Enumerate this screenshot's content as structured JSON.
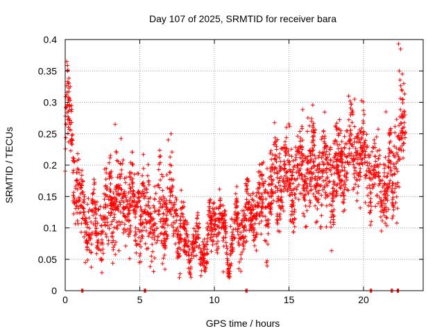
{
  "chart_data": {
    "type": "scatter",
    "title": "Day 107 of 2025, SRMTID for receiver bara",
    "xlabel": "GPS time / hours",
    "ylabel": "SRMTID / TECUs",
    "xlim": [
      0,
      24
    ],
    "ylim": [
      0,
      0.4
    ],
    "x_ticks": [
      0,
      5,
      10,
      15,
      20
    ],
    "x_tick_labels": [
      "0",
      "5",
      "10",
      "15",
      "20"
    ],
    "y_ticks": [
      0,
      0.05,
      0.1,
      0.15,
      0.2,
      0.25,
      0.3,
      0.35,
      0.4
    ],
    "y_tick_labels": [
      "0",
      "0.05",
      "0.1",
      "0.15",
      "0.2",
      "0.25",
      "0.3",
      "0.35",
      "0.4"
    ],
    "grid": true,
    "marker": "+",
    "series_color": "#ff0000",
    "series": [
      {
        "name": "SRMTID",
        "trend_x": [
          0,
          0.15,
          0.3,
          0.6,
          1,
          1.5,
          2,
          2.5,
          3,
          3.5,
          4,
          4.5,
          5,
          5.5,
          6,
          6.5,
          7,
          7.5,
          8,
          8.5,
          9,
          9.5,
          10,
          10.5,
          11,
          11.5,
          12,
          12.5,
          13,
          13.5,
          14,
          14.5,
          15,
          15.5,
          16,
          16.5,
          17,
          17.5,
          18,
          18.5,
          19,
          19.5,
          20,
          20.5,
          21,
          21.5,
          22,
          22.5,
          22.8
        ],
        "trend_y": [
          0.22,
          0.3,
          0.27,
          0.19,
          0.14,
          0.11,
          0.1,
          0.11,
          0.13,
          0.14,
          0.15,
          0.14,
          0.12,
          0.12,
          0.11,
          0.12,
          0.13,
          0.11,
          0.08,
          0.07,
          0.07,
          0.07,
          0.12,
          0.1,
          0.06,
          0.1,
          0.11,
          0.12,
          0.14,
          0.15,
          0.17,
          0.18,
          0.19,
          0.18,
          0.19,
          0.19,
          0.19,
          0.18,
          0.18,
          0.19,
          0.22,
          0.23,
          0.21,
          0.19,
          0.17,
          0.16,
          0.18,
          0.25,
          0.26
        ],
        "spread": [
          0.04,
          0.05,
          0.05,
          0.05,
          0.04,
          0.04,
          0.04,
          0.04,
          0.05,
          0.05,
          0.05,
          0.05,
          0.05,
          0.05,
          0.05,
          0.05,
          0.05,
          0.04,
          0.03,
          0.02,
          0.02,
          0.02,
          0.03,
          0.03,
          0.02,
          0.03,
          0.04,
          0.04,
          0.04,
          0.05,
          0.05,
          0.05,
          0.05,
          0.05,
          0.05,
          0.05,
          0.05,
          0.05,
          0.05,
          0.05,
          0.05,
          0.05,
          0.05,
          0.04,
          0.04,
          0.04,
          0.05,
          0.06,
          0.05
        ],
        "outliers": [
          {
            "x": 0.1,
            "y": 0.365
          },
          {
            "x": 0.15,
            "y": 0.35
          },
          {
            "x": 0.2,
            "y": 0.33
          },
          {
            "x": 3.35,
            "y": 0.265
          },
          {
            "x": 6.9,
            "y": 0.24
          },
          {
            "x": 19.0,
            "y": 0.31
          },
          {
            "x": 19.4,
            "y": 0.305
          },
          {
            "x": 21.5,
            "y": 0.285
          },
          {
            "x": 22.35,
            "y": 0.393
          },
          {
            "x": 22.4,
            "y": 0.35
          },
          {
            "x": 22.6,
            "y": 0.345
          },
          {
            "x": 22.7,
            "y": 0.33
          },
          {
            "x": 0.05,
            "y": 0.265
          },
          {
            "x": 10.6,
            "y": 0.03
          },
          {
            "x": 21.2,
            "y": 0.095
          }
        ],
        "zero_points_x": [
          1.15,
          5.35,
          12.15,
          20.5,
          21.9,
          22.3
        ]
      }
    ]
  }
}
